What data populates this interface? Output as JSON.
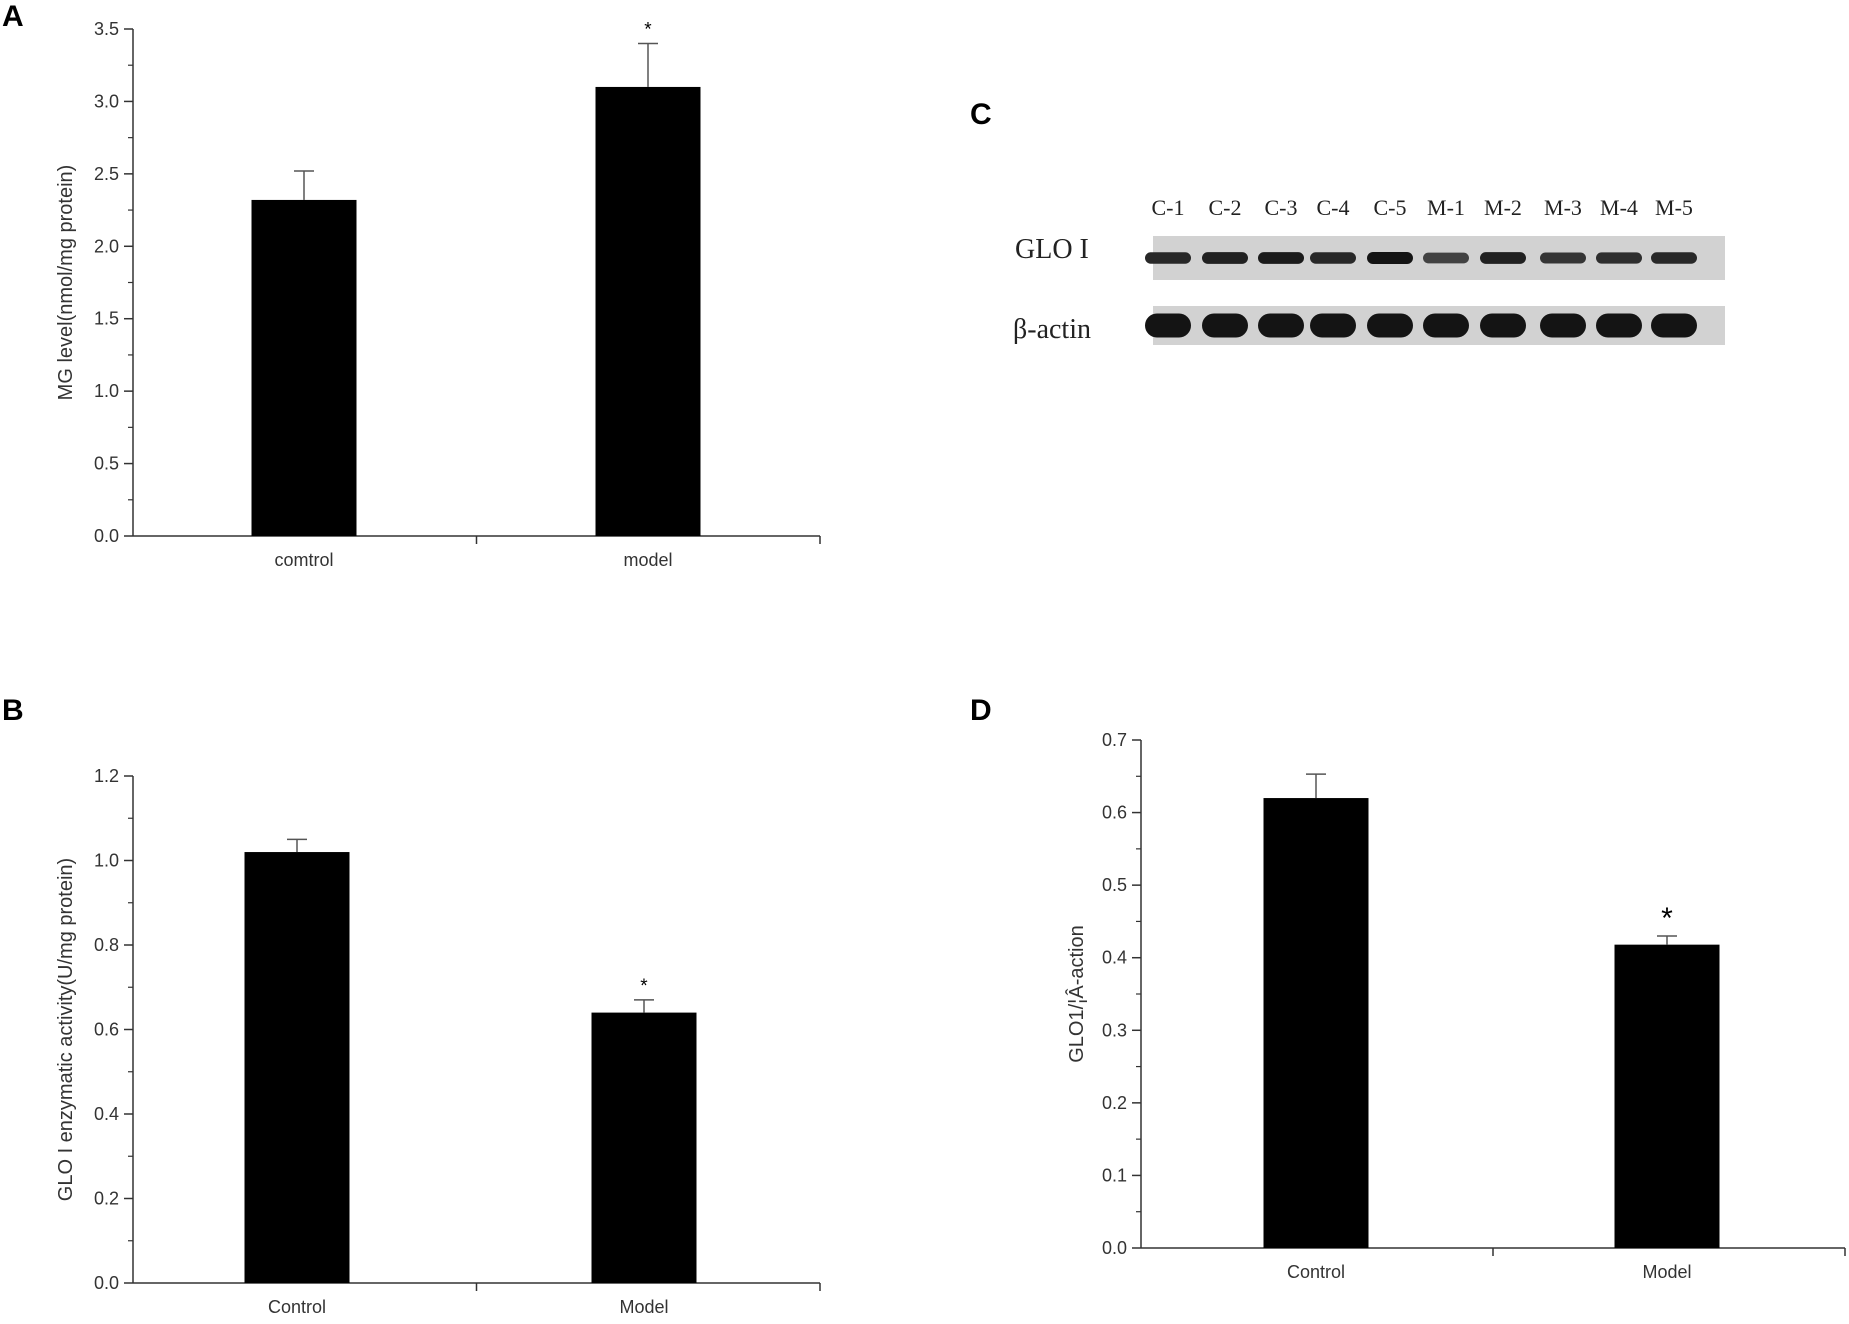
{
  "panels": {
    "A": {
      "label": "A"
    },
    "B": {
      "label": "B"
    },
    "C": {
      "label": "C"
    },
    "D": {
      "label": "D"
    }
  },
  "chart_data": [
    {
      "id": "A",
      "type": "bar",
      "categories": [
        "comtrol",
        "model"
      ],
      "values": [
        2.32,
        3.1
      ],
      "errors": [
        0.2,
        0.3
      ],
      "significance": [
        "",
        "*"
      ],
      "title": "",
      "xlabel": "",
      "ylabel": "MG level(nmol/mg protein)",
      "ylim": [
        0,
        3.5
      ],
      "yticks": [
        "0.0",
        "0.5",
        "1.0",
        "1.5",
        "2.0",
        "2.5",
        "3.0",
        "3.5"
      ],
      "bar_color": "#000000",
      "grid": false
    },
    {
      "id": "B",
      "type": "bar",
      "categories": [
        "Control",
        "Model"
      ],
      "values": [
        1.02,
        0.64
      ],
      "errors": [
        0.03,
        0.03
      ],
      "significance": [
        "",
        "*"
      ],
      "title": "",
      "xlabel": "",
      "ylabel": "GLO I enzymatic activity(U/mg protein)",
      "ylim": [
        0,
        1.2
      ],
      "yticks": [
        "0.0",
        "0.2",
        "0.4",
        "0.6",
        "0.8",
        "1.0",
        "1.2"
      ],
      "bar_color": "#000000",
      "grid": false
    },
    {
      "id": "D",
      "type": "bar",
      "categories": [
        "Control",
        "Model"
      ],
      "values": [
        0.62,
        0.418
      ],
      "errors": [
        0.033,
        0.012
      ],
      "significance": [
        "",
        "*"
      ],
      "title": "",
      "xlabel": "",
      "ylabel": "GLO1/¦Â-action",
      "ylim": [
        0,
        0.7
      ],
      "yticks": [
        "0.0",
        "0.1",
        "0.2",
        "0.3",
        "0.4",
        "0.5",
        "0.6",
        "0.7"
      ],
      "bar_color": "#000000",
      "grid": false
    }
  ],
  "blot": {
    "lanes": [
      "C-1",
      "C-2",
      "C-3",
      "C-4",
      "C-5",
      "M-1",
      "M-2",
      "M-3",
      "M-4",
      "M-5"
    ],
    "rows": [
      {
        "label": "GLO I",
        "intensity": [
          0.85,
          0.9,
          0.95,
          0.85,
          1.0,
          0.65,
          0.9,
          0.75,
          0.8,
          0.85
        ]
      },
      {
        "label": "β-actin",
        "intensity": [
          1,
          1,
          1,
          1,
          1,
          1,
          1,
          1,
          1,
          1
        ]
      }
    ]
  }
}
